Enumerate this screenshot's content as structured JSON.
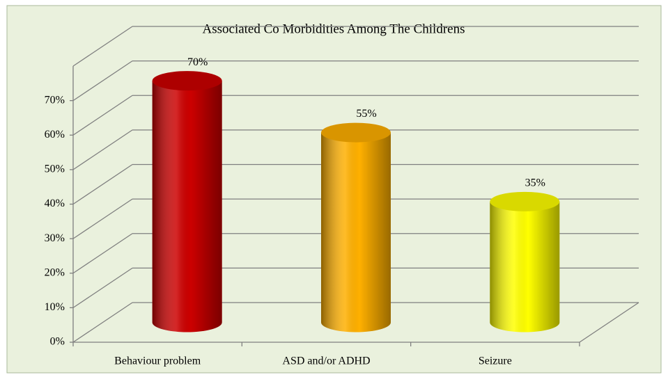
{
  "chart_data": {
    "type": "bar3d",
    "title": "Associated Co Morbidities Among The Childrens",
    "categories": [
      "Behaviour problem",
      "ASD and/or ADHD",
      "Seizure"
    ],
    "values": [
      70,
      55,
      35
    ],
    "value_labels": [
      "70%",
      "55%",
      "35%"
    ],
    "colors": [
      "#cc0000",
      "#ffb000",
      "#ffff00"
    ],
    "ylim": [
      0,
      80
    ],
    "yticks": [
      {
        "value": 0,
        "label": "0%"
      },
      {
        "value": 10,
        "label": "10%"
      },
      {
        "value": 20,
        "label": "20%"
      },
      {
        "value": 30,
        "label": "30%"
      },
      {
        "value": 40,
        "label": "40%"
      },
      {
        "value": 50,
        "label": "50%"
      },
      {
        "value": 60,
        "label": "60%"
      },
      {
        "value": 70,
        "label": "70%"
      }
    ],
    "grid": true
  }
}
